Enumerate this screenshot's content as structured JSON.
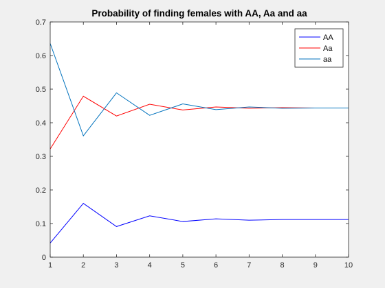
{
  "chart_data": {
    "type": "line",
    "title": "Probability of finding females with AA, Aa and aa",
    "xlabel": "",
    "ylabel": "",
    "xlim": [
      1,
      10
    ],
    "ylim": [
      0,
      0.7
    ],
    "x_ticks": [
      1,
      2,
      3,
      4,
      5,
      6,
      7,
      8,
      9,
      10
    ],
    "y_ticks": [
      0,
      0.1,
      0.2,
      0.3,
      0.4,
      0.5,
      0.6,
      0.7
    ],
    "y_tick_labels": [
      "0",
      "0.1",
      "0.2",
      "0.3",
      "0.4",
      "0.5",
      "0.6",
      "0.7"
    ],
    "grid": false,
    "legend_position": "top-right",
    "x": [
      1,
      2,
      3,
      4,
      5,
      6,
      7,
      8,
      9,
      10
    ],
    "series": [
      {
        "name": "AA",
        "color": "#0000ff",
        "values": [
          0.042,
          0.16,
          0.091,
          0.123,
          0.106,
          0.114,
          0.11,
          0.112,
          0.112,
          0.112
        ]
      },
      {
        "name": "Aa",
        "color": "#ff0000",
        "values": [
          0.322,
          0.479,
          0.42,
          0.455,
          0.438,
          0.447,
          0.443,
          0.445,
          0.444,
          0.444
        ]
      },
      {
        "name": "aa",
        "color": "#0072bd",
        "values": [
          0.636,
          0.361,
          0.489,
          0.422,
          0.456,
          0.439,
          0.447,
          0.443,
          0.444,
          0.444
        ]
      }
    ]
  }
}
